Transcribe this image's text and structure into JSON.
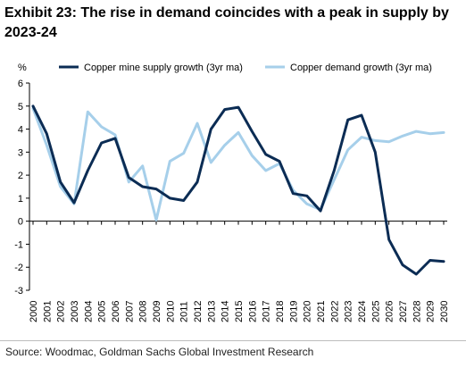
{
  "title": "Exhibit 23: The rise in demand coincides with a peak in supply by 2023-24",
  "source": "Source: Woodmac, Goldman Sachs Global Investment Research",
  "chart_data": {
    "type": "line",
    "ylabel": "%",
    "ylim": [
      -3,
      6
    ],
    "yticks": [
      6,
      5,
      4,
      3,
      2,
      1,
      0,
      -1,
      -2,
      -3
    ],
    "grid": false,
    "legend_position": "top",
    "x": [
      "2000",
      "2001",
      "2002",
      "2003",
      "2004",
      "2005",
      "2006",
      "2007",
      "2008",
      "2009",
      "2010",
      "2011",
      "2012",
      "2013",
      "2014",
      "2015",
      "2016",
      "2017",
      "2018",
      "2019",
      "2020",
      "2021",
      "2022",
      "2023",
      "2024",
      "2025",
      "2026",
      "2027",
      "2028",
      "2029",
      "2030"
    ],
    "series": [
      {
        "name": "Copper mine supply growth (3yr ma)",
        "color": "#0b2c54",
        "values": [
          5.0,
          3.8,
          1.7,
          0.8,
          2.2,
          3.4,
          3.6,
          1.9,
          1.5,
          1.4,
          1.0,
          0.9,
          1.7,
          4.0,
          4.85,
          4.95,
          3.9,
          2.9,
          2.6,
          1.2,
          1.1,
          0.45,
          2.2,
          4.4,
          4.6,
          3.0,
          -0.8,
          -1.9,
          -2.3,
          -1.7,
          -1.75
        ]
      },
      {
        "name": "Copper demand growth (3yr ma)",
        "color": "#a6cfea",
        "values": [
          4.9,
          3.3,
          1.5,
          0.75,
          4.75,
          4.1,
          3.75,
          1.7,
          2.4,
          0.05,
          2.6,
          2.95,
          4.25,
          2.55,
          3.3,
          3.85,
          2.85,
          2.2,
          2.5,
          1.35,
          0.75,
          0.5,
          1.8,
          3.1,
          3.65,
          3.5,
          3.45,
          3.7,
          3.9,
          3.8,
          3.85
        ]
      }
    ]
  }
}
